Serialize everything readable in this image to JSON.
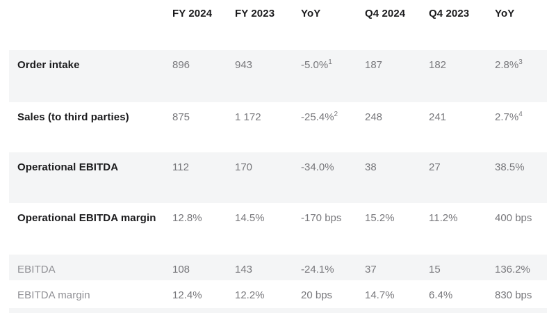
{
  "table": {
    "columns": [
      "FY 2024",
      "FY 2023",
      "YoY",
      "Q4 2024",
      "Q4 2023",
      "YoY"
    ],
    "rows": [
      {
        "label": "Order intake",
        "cells": [
          {
            "v": "896"
          },
          {
            "v": "943"
          },
          {
            "v": "-5.0%",
            "sup": "1"
          },
          {
            "v": "187"
          },
          {
            "v": "182"
          },
          {
            "v": "2.8%",
            "sup": "3"
          }
        ]
      },
      {
        "label": "Sales (to third parties)",
        "cells": [
          {
            "v": "875"
          },
          {
            "v": "1 172"
          },
          {
            "v": "-25.4%",
            "sup": "2"
          },
          {
            "v": "248"
          },
          {
            "v": "241"
          },
          {
            "v": "2.7%",
            "sup": "4"
          }
        ]
      },
      {
        "label": "Operational EBITDA",
        "cells": [
          {
            "v": "112"
          },
          {
            "v": "170"
          },
          {
            "v": "-34.0%"
          },
          {
            "v": "38"
          },
          {
            "v": "27"
          },
          {
            "v": "38.5%"
          }
        ]
      },
      {
        "label": "Operational EBITDA margin",
        "cells": [
          {
            "v": "12.8%"
          },
          {
            "v": "14.5%"
          },
          {
            "v": "-170 bps"
          },
          {
            "v": "15.2%"
          },
          {
            "v": "11.2%"
          },
          {
            "v": "400 bps"
          }
        ]
      },
      {
        "label": "EBITDA",
        "cells": [
          {
            "v": "108"
          },
          {
            "v": "143"
          },
          {
            "v": "-24.1%"
          },
          {
            "v": "37"
          },
          {
            "v": "15"
          },
          {
            "v": "136.2%"
          }
        ]
      },
      {
        "label": "EBITDA margin",
        "cells": [
          {
            "v": "12.4%"
          },
          {
            "v": "12.2%"
          },
          {
            "v": "20 bps"
          },
          {
            "v": "14.7%"
          },
          {
            "v": "6.4%"
          },
          {
            "v": "830 bps"
          }
        ]
      }
    ]
  },
  "colors": {
    "row_band": "#f4f5f6",
    "heading_text": "#1a1a1c",
    "value_text": "#77777b",
    "muted_label_text": "#8f8f94"
  }
}
